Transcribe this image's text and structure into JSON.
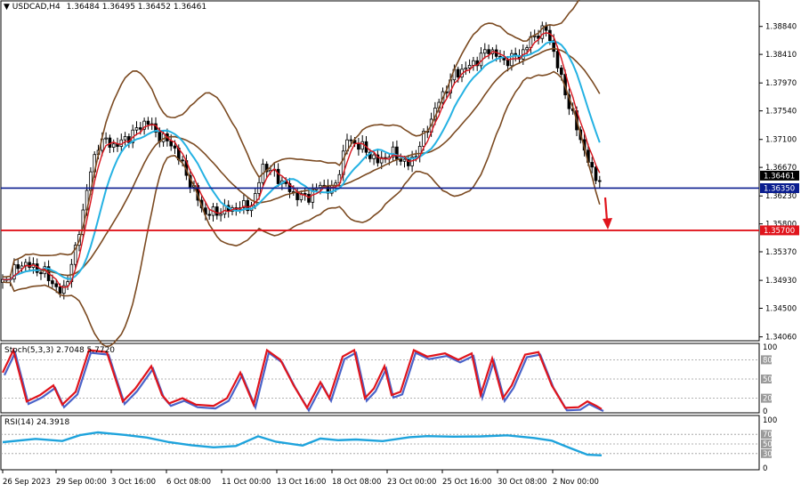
{
  "header": {
    "arrow": "▼",
    "symbol": "USDCAD,H4",
    "ohlc": "1.36484 1.36495 1.36452 1.36461"
  },
  "colors": {
    "candle": "#000000",
    "bollinger": "#7b4a21",
    "fast_ma": "#d8141c",
    "slow_ma": "#25b2e3",
    "support_blue": "#0a1d8f",
    "support_red": "#e0141c",
    "arrow": "#e0141c",
    "stoch_main": "#e0141c",
    "stoch_signal": "#4a63c9",
    "rsi": "#1ea3dc"
  },
  "main_axis": {
    "ticks": [
      "1.38840",
      "1.38410",
      "1.37970",
      "1.37540",
      "1.37100",
      "1.36670",
      "1.36230",
      "1.35800",
      "1.35370",
      "1.34930",
      "1.34500",
      "1.34060"
    ],
    "range": [
      1.34,
      1.3922
    ]
  },
  "price_tags": [
    {
      "label": "1.36461",
      "value": 1.36461,
      "color": "#000000"
    },
    {
      "label": "1.36350",
      "value": 1.3635,
      "color": "#0a1d8f"
    },
    {
      "label": "1.35700",
      "value": 1.357,
      "color": "#e0141c"
    }
  ],
  "stoch": {
    "label": "Stoch(5,3,3) 2.7048 5.7720",
    "ticks": [
      "100",
      "80",
      "50",
      "20",
      "0"
    ],
    "levels": [
      80,
      50,
      20
    ]
  },
  "rsi": {
    "label": "RSI(14) 24.3918",
    "ticks": [
      "100",
      "70",
      "50",
      "30",
      "0"
    ],
    "levels": [
      70,
      50,
      30
    ]
  },
  "time_axis": [
    "26 Sep 2023",
    "29 Sep 00:00",
    "3 Oct 16:00",
    "6 Oct 08:00",
    "11 Oct 00:00",
    "13 Oct 16:00",
    "18 Oct 08:00",
    "23 Oct 00:00",
    "25 Oct 16:00",
    "30 Oct 08:00",
    "2 Nov 00:00"
  ],
  "chart_data": {
    "type": "line",
    "symbol": "USDCAD",
    "timeframe": "H4",
    "x": [
      "26 Sep 2023",
      "29 Sep 00:00",
      "3 Oct 16:00",
      "6 Oct 08:00",
      "11 Oct 00:00",
      "13 Oct 16:00",
      "18 Oct 08:00",
      "23 Oct 00:00",
      "25 Oct 16:00",
      "30 Oct 08:00",
      "2 Nov 00:00"
    ],
    "close_anchors": [
      1.35,
      1.347,
      1.372,
      1.362,
      1.3595,
      1.363,
      1.37,
      1.367,
      1.38,
      1.384,
      1.366
    ],
    "last_close": 1.36461,
    "horizontal_levels": [
      1.3635,
      1.357
    ],
    "ylim": [
      1.34,
      1.3922
    ],
    "stoch_last": {
      "main": 2.7048,
      "signal": 5.772
    },
    "rsi_last": 24.3918
  }
}
